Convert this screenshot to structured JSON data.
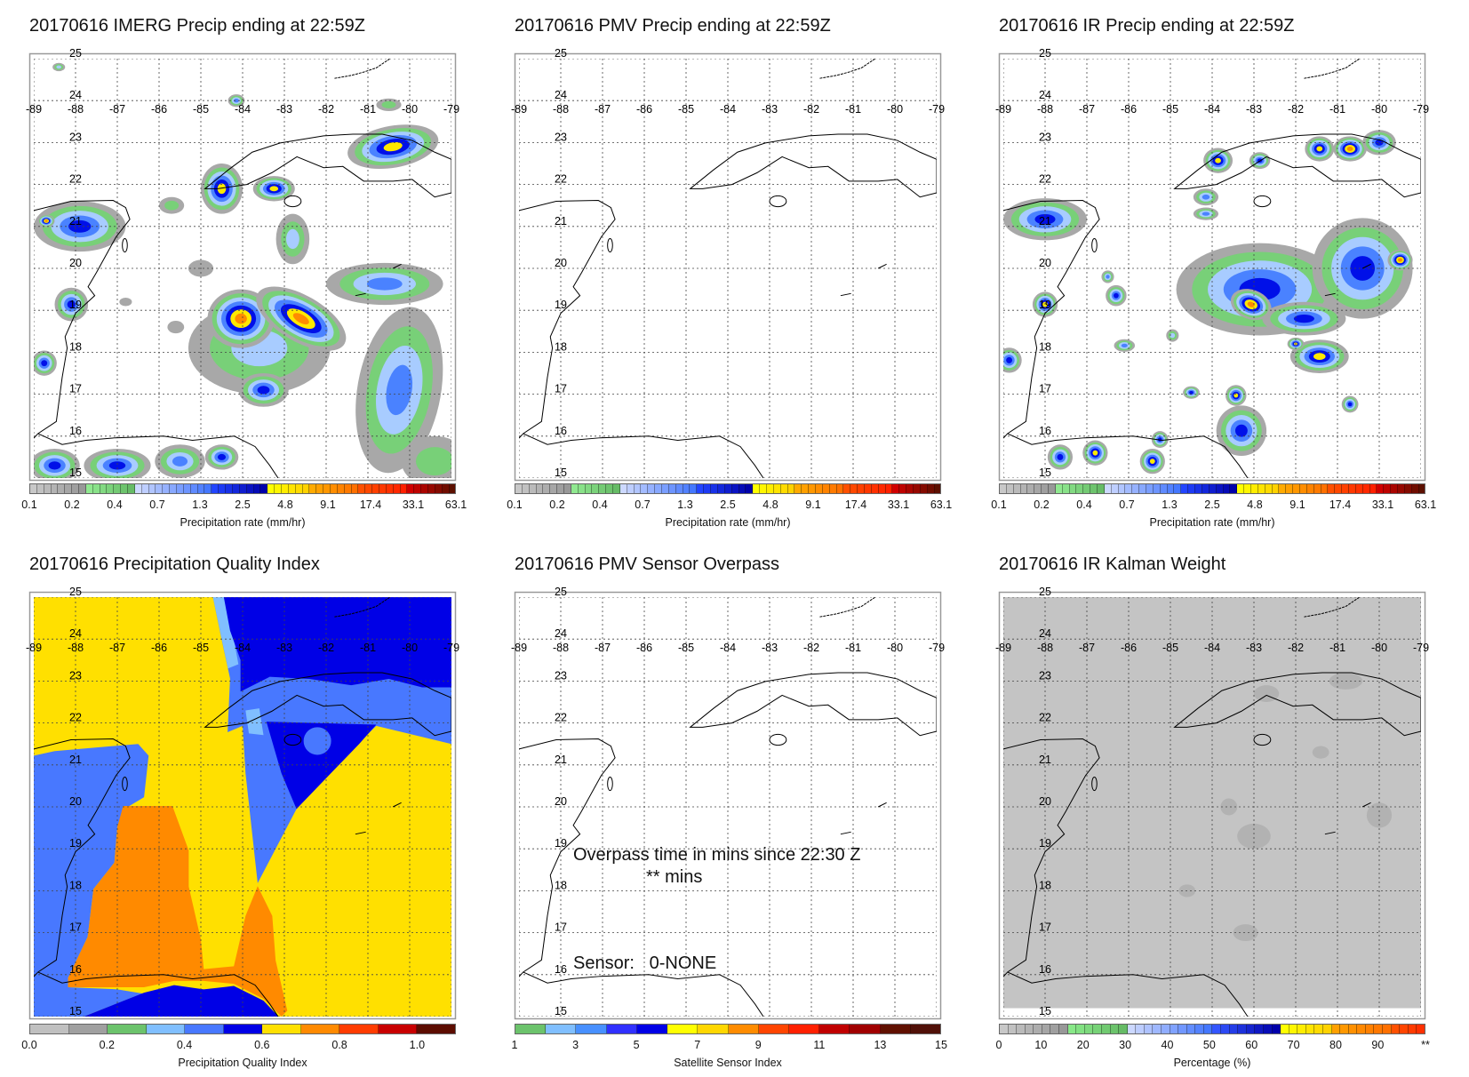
{
  "panels": [
    {
      "id": "imerg",
      "title": "20170616 IMERG Precip ending at 22:59Z",
      "colorbar": {
        "title": "Precipitation rate (mm/hr)",
        "labels": [
          "0.1",
          "0.2",
          "0.4",
          "0.7",
          "1.3",
          "2.5",
          "4.8",
          "9.1",
          "17.4",
          "33.1",
          "63.1"
        ]
      }
    },
    {
      "id": "pmv",
      "title": "20170616 PMV Precip ending at 22:59Z",
      "colorbar": {
        "title": "Precipitation rate (mm/hr)",
        "labels": [
          "0.1",
          "0.2",
          "0.4",
          "0.7",
          "1.3",
          "2.5",
          "4.8",
          "9.1",
          "17.4",
          "33.1",
          "63.1"
        ]
      }
    },
    {
      "id": "ir",
      "title": "20170616 IR Precip ending at 22:59Z",
      "colorbar": {
        "title": "Precipitation rate (mm/hr)",
        "labels": [
          "0.1",
          "0.2",
          "0.4",
          "0.7",
          "1.3",
          "2.5",
          "4.8",
          "9.1",
          "17.4",
          "33.1",
          "63.1"
        ]
      }
    },
    {
      "id": "pqi",
      "title": "20170616 Precipitation Quality Index",
      "colorbar": {
        "title": "Precipitation Quality Index",
        "labels": [
          "0.0",
          "0.2",
          "0.4",
          "0.6",
          "0.8",
          "1.0"
        ]
      }
    },
    {
      "id": "sensor",
      "title": "20170616 PMV Sensor Overpass",
      "colorbar": {
        "title": "Satellite Sensor Index",
        "labels": [
          "1",
          "3",
          "5",
          "7",
          "9",
          "11",
          "13",
          "15"
        ]
      }
    },
    {
      "id": "kalman",
      "title": "20170616 IR Kalman Weight",
      "colorbar": {
        "title": "Percentage (%)",
        "labels": [
          "0",
          "10",
          "20",
          "30",
          "40",
          "50",
          "60",
          "70",
          "80",
          "90",
          "**"
        ]
      }
    }
  ],
  "map": {
    "lon_labels": [
      "-89",
      "-88",
      "-87",
      "-86",
      "-85",
      "-84",
      "-83",
      "-82",
      "-81",
      "-80",
      "-79"
    ],
    "lat_labels": [
      "25",
      "24",
      "23",
      "22",
      "21",
      "20",
      "19",
      "18",
      "17",
      "16",
      "15"
    ]
  },
  "overpass": {
    "line1": "Overpass time in mins since 22:30 Z",
    "line2": "** mins",
    "sensor": "Sensor:   0-NONE"
  },
  "colors": {
    "precip_levels": [
      "#a8a8a8",
      "#78d078",
      "#a8ccff",
      "#4a82ff",
      "#0010e8",
      "#ffe800",
      "#ff8c00"
    ],
    "pqi_bar": [
      "#c0c0c0",
      "#a0a0a0",
      "#6cc36c",
      "#80bfff",
      "#4878ff",
      "#0000e6",
      "#ffe000",
      "#ff8a00",
      "#ff3c00",
      "#c80000",
      "#5c0c00"
    ],
    "sensor_bar": [
      "#6cc36c",
      "#80bfff",
      "#4890ff",
      "#3030ff",
      "#0000e6",
      "#ffff00",
      "#ffd700",
      "#ff8c00",
      "#ff4500",
      "#ff2000",
      "#c00000",
      "#a00000",
      "#601000",
      "#501008"
    ],
    "kalman_bg": "#c4c4c4"
  }
}
